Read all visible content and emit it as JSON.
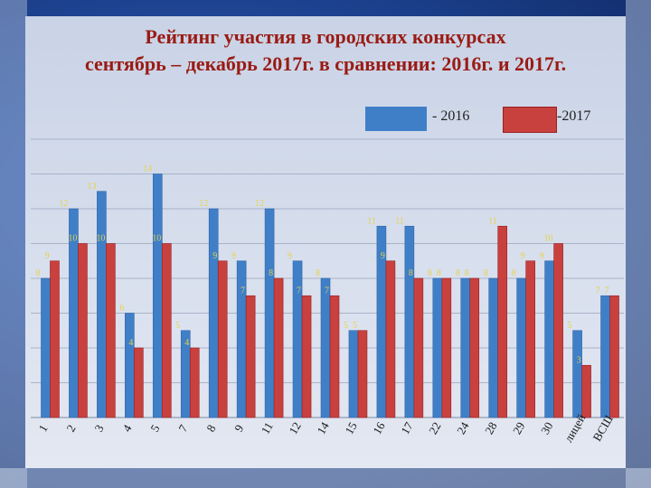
{
  "title": {
    "line1": "Рейтинг участия в городских конкурсах",
    "line2": "сентябрь – декабрь 2017г. в сравнении: 2016г. и 2017г."
  },
  "legend": [
    {
      "label": "- 2016",
      "color": "#3f7fc8"
    },
    {
      "label": "-2017",
      "color": "#c8413f"
    }
  ],
  "chart_data": {
    "type": "bar",
    "categories": [
      "1",
      "2",
      "3",
      "4",
      "5",
      "7",
      "8",
      "9",
      "11",
      "12",
      "14",
      "15",
      "16",
      "17",
      "22",
      "24",
      "28",
      "29",
      "30",
      "лицей",
      "ВСШ"
    ],
    "series": [
      {
        "name": "- 2016",
        "color": "#3f7fc8",
        "values": [
          8,
          12,
          13,
          6,
          14,
          5,
          12,
          9,
          12,
          9,
          8,
          5,
          11,
          11,
          8,
          8,
          8,
          8,
          9,
          5,
          7
        ]
      },
      {
        "name": "-2017",
        "color": "#c8413f",
        "values": [
          9,
          10,
          10,
          4,
          10,
          4,
          9,
          7,
          8,
          7,
          7,
          5,
          9,
          8,
          8,
          8,
          11,
          9,
          10,
          3,
          7
        ]
      }
    ],
    "ylim": [
      0,
      16
    ],
    "grid": true,
    "value_label_color": "#e6d24a",
    "legend_position": "top-right"
  }
}
